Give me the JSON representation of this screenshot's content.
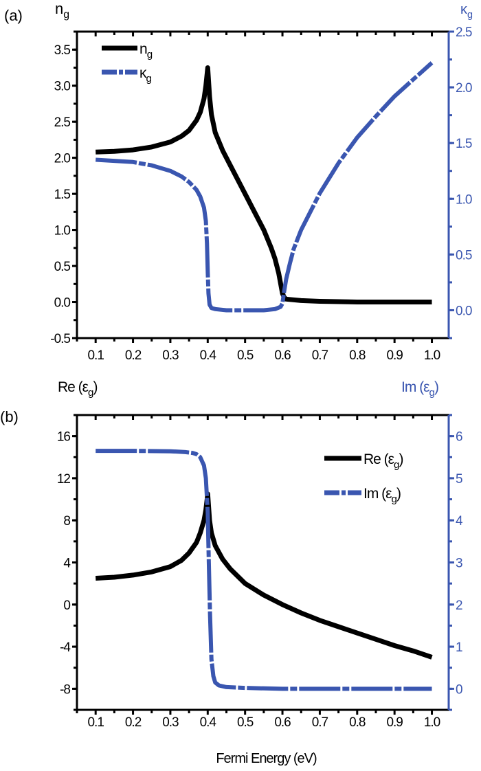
{
  "colors": {
    "black": "#000000",
    "blue": "#3a56b0"
  },
  "chart_data": [
    {
      "panel_label": "(a)",
      "type": "line",
      "xlim": [
        0.05,
        1.045
      ],
      "xticks": [
        "0.1",
        "0.2",
        "0.3",
        "0.4",
        "0.5",
        "0.6",
        "0.7",
        "0.8",
        "0.9",
        "1.0"
      ],
      "xlabel": "",
      "y_left": {
        "label": {
          "main": "n",
          "sub": "g"
        },
        "lim": [
          -0.5,
          3.75
        ],
        "ticks": [
          "-0.5",
          "0.0",
          "0.5",
          "1.0",
          "1.5",
          "2.0",
          "2.5",
          "3.0",
          "3.5"
        ],
        "minor_step": 0.25
      },
      "y_right": {
        "label": {
          "main": "κ",
          "sub": "g"
        },
        "lim": [
          -0.25,
          2.5
        ],
        "ticks": [
          "0.0",
          "0.5",
          "1.0",
          "1.5",
          "2.0",
          "2.5"
        ],
        "minor_step": 0.25
      },
      "legend_position": "top-left",
      "series": [
        {
          "name": {
            "main": "n",
            "sub": "g"
          },
          "axis": "left",
          "color": "#000000",
          "style": "solid",
          "x": [
            0.1,
            0.15,
            0.2,
            0.25,
            0.3,
            0.33,
            0.35,
            0.37,
            0.38,
            0.39,
            0.395,
            0.4,
            0.405,
            0.41,
            0.42,
            0.44,
            0.46,
            0.5,
            0.53,
            0.55,
            0.57,
            0.58,
            0.59,
            0.6,
            0.605,
            0.61,
            0.65,
            0.7,
            0.8,
            0.9,
            1.0
          ],
          "y": [
            2.08,
            2.09,
            2.11,
            2.15,
            2.22,
            2.3,
            2.38,
            2.52,
            2.63,
            2.82,
            3.0,
            3.25,
            2.85,
            2.6,
            2.35,
            2.1,
            1.9,
            1.5,
            1.2,
            1.0,
            0.75,
            0.6,
            0.4,
            0.12,
            0.06,
            0.04,
            0.02,
            0.01,
            0.0,
            0.0,
            0.0
          ]
        },
        {
          "name": {
            "main": "κ",
            "sub": "g"
          },
          "axis": "right",
          "color": "#3a56b0",
          "style": "dash-dot",
          "x": [
            0.1,
            0.15,
            0.2,
            0.25,
            0.3,
            0.33,
            0.35,
            0.37,
            0.38,
            0.39,
            0.395,
            0.398,
            0.4,
            0.402,
            0.405,
            0.41,
            0.42,
            0.45,
            0.5,
            0.55,
            0.58,
            0.595,
            0.6,
            0.605,
            0.61,
            0.62,
            0.63,
            0.65,
            0.7,
            0.75,
            0.8,
            0.85,
            0.9,
            0.95,
            1.0
          ],
          "y": [
            1.35,
            1.34,
            1.33,
            1.3,
            1.25,
            1.2,
            1.15,
            1.08,
            1.02,
            0.92,
            0.8,
            0.6,
            0.35,
            0.15,
            0.05,
            0.02,
            0.01,
            0.0,
            0.0,
            0.0,
            0.01,
            0.03,
            0.06,
            0.18,
            0.28,
            0.42,
            0.55,
            0.72,
            1.05,
            1.32,
            1.55,
            1.74,
            1.92,
            2.07,
            2.22
          ]
        }
      ]
    },
    {
      "panel_label": "(b)",
      "type": "line",
      "xlim": [
        0.05,
        1.045
      ],
      "xticks": [
        "0.1",
        "0.2",
        "0.3",
        "0.4",
        "0.5",
        "0.6",
        "0.7",
        "0.8",
        "0.9",
        "1.0"
      ],
      "xlabel": "Fermi Energy (eV)",
      "y_left": {
        "label": {
          "main": "Re (ε",
          "sub": "g",
          "tail": ")"
        },
        "lim": [
          -10,
          18
        ],
        "ticks": [
          "-8",
          "-4",
          "0",
          "4",
          "8",
          "12",
          "16"
        ],
        "tick_values": [
          -8,
          -4,
          0,
          4,
          8,
          12,
          16
        ],
        "minor_step": 2
      },
      "y_right": {
        "label": {
          "main": "Im (ε",
          "sub": "g",
          "tail": ")"
        },
        "lim": [
          -0.5,
          6.5
        ],
        "ticks": [
          "0",
          "1",
          "2",
          "3",
          "4",
          "5",
          "6"
        ],
        "tick_values": [
          0,
          1,
          2,
          3,
          4,
          5,
          6
        ],
        "minor_step": 0.5
      },
      "legend_position": "top-right",
      "series": [
        {
          "name": {
            "main": "Re (ε",
            "sub": "g",
            "tail": ")"
          },
          "axis": "left",
          "color": "#000000",
          "style": "solid",
          "x": [
            0.1,
            0.15,
            0.2,
            0.25,
            0.3,
            0.33,
            0.35,
            0.37,
            0.38,
            0.39,
            0.395,
            0.4,
            0.405,
            0.41,
            0.42,
            0.44,
            0.46,
            0.5,
            0.55,
            0.6,
            0.65,
            0.7,
            0.75,
            0.8,
            0.85,
            0.9,
            0.95,
            1.0
          ],
          "y": [
            2.5,
            2.6,
            2.8,
            3.1,
            3.6,
            4.2,
            4.9,
            5.9,
            6.8,
            8.0,
            9.0,
            10.5,
            8.0,
            6.8,
            5.6,
            4.3,
            3.4,
            2.0,
            0.9,
            0.0,
            -0.8,
            -1.5,
            -2.1,
            -2.7,
            -3.3,
            -3.9,
            -4.4,
            -5.0
          ]
        },
        {
          "name": {
            "main": "Im (ε",
            "sub": "g",
            "tail": ")"
          },
          "axis": "right",
          "color": "#3a56b0",
          "style": "dash-dot",
          "x": [
            0.1,
            0.2,
            0.3,
            0.34,
            0.36,
            0.37,
            0.38,
            0.39,
            0.395,
            0.4,
            0.403,
            0.406,
            0.41,
            0.415,
            0.42,
            0.43,
            0.45,
            0.5,
            0.6,
            0.7,
            1.0
          ],
          "y": [
            5.65,
            5.65,
            5.64,
            5.62,
            5.6,
            5.57,
            5.5,
            5.3,
            5.0,
            4.2,
            3.0,
            1.8,
            0.7,
            0.3,
            0.15,
            0.08,
            0.04,
            0.02,
            0.0,
            0.0,
            0.0
          ]
        }
      ]
    }
  ]
}
